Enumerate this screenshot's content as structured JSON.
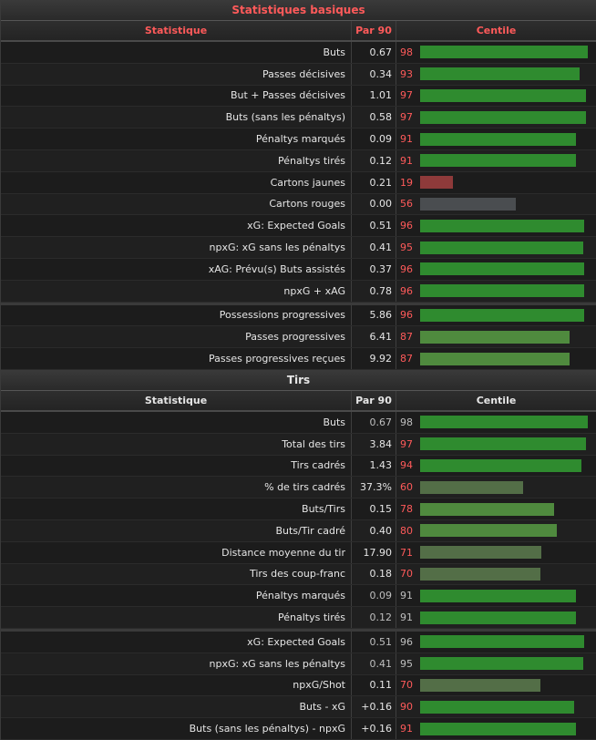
{
  "colors": {
    "high": "#2f8b2f",
    "mid_high": "#4f8a3e",
    "mid": "#536e47",
    "neutral": "#4a4d50",
    "low": "#8e3a3a",
    "header_red": "#ff6b6b",
    "header_white": "#e6e6e6"
  },
  "basic": {
    "title": "Statistiques basiques",
    "col_stat": "Statistique",
    "col_per90": "Par 90",
    "col_pct": "Centile",
    "rows": [
      {
        "label": "Buts",
        "value": "0.67",
        "pct": 98,
        "color": "high"
      },
      {
        "label": "Passes décisives",
        "value": "0.34",
        "pct": 93,
        "color": "high"
      },
      {
        "label": "But + Passes décisives",
        "value": "1.01",
        "pct": 97,
        "color": "high"
      },
      {
        "label": "Buts (sans les pénaltys)",
        "value": "0.58",
        "pct": 97,
        "color": "high"
      },
      {
        "label": "Pénaltys marqués",
        "value": "0.09",
        "pct": 91,
        "color": "high"
      },
      {
        "label": "Pénaltys tirés",
        "value": "0.12",
        "pct": 91,
        "color": "high"
      },
      {
        "label": "Cartons jaunes",
        "value": "0.21",
        "pct": 19,
        "color": "low"
      },
      {
        "label": "Cartons rouges",
        "value": "0.00",
        "pct": 56,
        "color": "neutral"
      },
      {
        "label": "xG: Expected Goals",
        "value": "0.51",
        "pct": 96,
        "color": "high"
      },
      {
        "label": "npxG: xG sans les pénaltys",
        "value": "0.41",
        "pct": 95,
        "color": "high"
      },
      {
        "label": "xAG: Prévu(s) Buts assistés",
        "value": "0.37",
        "pct": 96,
        "color": "high"
      },
      {
        "label": "npxG + xAG",
        "value": "0.78",
        "pct": 96,
        "color": "high"
      },
      {
        "label": "Possessions progressives",
        "value": "5.86",
        "pct": 96,
        "color": "high",
        "sep": true
      },
      {
        "label": "Passes progressives",
        "value": "6.41",
        "pct": 87,
        "color": "mid_high"
      },
      {
        "label": "Passes progressives reçues",
        "value": "9.92",
        "pct": 87,
        "color": "mid_high"
      }
    ]
  },
  "shots": {
    "title": "Tirs",
    "col_stat": "Statistique",
    "col_per90": "Par 90",
    "col_pct": "Centile",
    "rows": [
      {
        "label": "Buts",
        "value": "0.67",
        "pct": 98,
        "color": "high",
        "muted": true
      },
      {
        "label": "Total des tirs",
        "value": "3.84",
        "pct": 97,
        "color": "high"
      },
      {
        "label": "Tirs cadrés",
        "value": "1.43",
        "pct": 94,
        "color": "high"
      },
      {
        "label": "% de tirs cadrés",
        "value": "37.3%",
        "pct": 60,
        "color": "mid"
      },
      {
        "label": "Buts/Tirs",
        "value": "0.15",
        "pct": 78,
        "color": "mid_high"
      },
      {
        "label": "Buts/Tir cadré",
        "value": "0.40",
        "pct": 80,
        "color": "mid_high"
      },
      {
        "label": "Distance moyenne du tir",
        "value": "17.90",
        "pct": 71,
        "color": "mid"
      },
      {
        "label": "Tirs des coup-franc",
        "value": "0.18",
        "pct": 70,
        "color": "mid"
      },
      {
        "label": "Pénaltys marqués",
        "value": "0.09",
        "pct": 91,
        "color": "high",
        "muted": true
      },
      {
        "label": "Pénaltys tirés",
        "value": "0.12",
        "pct": 91,
        "color": "high",
        "muted": true
      },
      {
        "label": "xG: Expected Goals",
        "value": "0.51",
        "pct": 96,
        "color": "high",
        "sep": true,
        "muted": true
      },
      {
        "label": "npxG: xG sans les pénaltys",
        "value": "0.41",
        "pct": 95,
        "color": "high",
        "muted": true
      },
      {
        "label": "npxG/Shot",
        "value": "0.11",
        "pct": 70,
        "color": "mid"
      },
      {
        "label": "Buts - xG",
        "value": "+0.16",
        "pct": 90,
        "color": "high"
      },
      {
        "label": "Buts (sans les pénaltys) - npxG",
        "value": "+0.16",
        "pct": 91,
        "color": "high"
      }
    ]
  }
}
